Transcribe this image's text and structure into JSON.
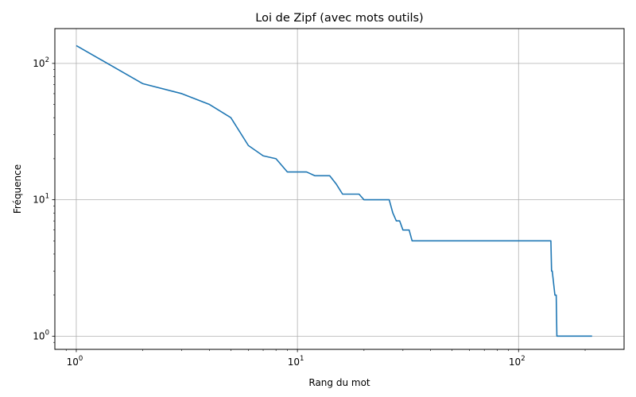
{
  "chart_data": {
    "type": "line",
    "title": "Loi de Zipf (avec mots outils)",
    "xlabel": "Rang du mot",
    "ylabel": "Fréquence",
    "x_scale": "log",
    "y_scale": "log",
    "xlim": [
      0.8,
      300
    ],
    "ylim": [
      0.8,
      180
    ],
    "grid": true,
    "color": "#1f77b4",
    "x_ticks": [
      {
        "value": 1,
        "base": "10",
        "exp": "0"
      },
      {
        "value": 10,
        "base": "10",
        "exp": "1"
      },
      {
        "value": 100,
        "base": "10",
        "exp": "2"
      }
    ],
    "y_ticks": [
      {
        "value": 1,
        "base": "10",
        "exp": "0"
      },
      {
        "value": 10,
        "base": "10",
        "exp": "1"
      },
      {
        "value": 100,
        "base": "10",
        "exp": "2"
      }
    ],
    "series": [
      {
        "x": [
          1,
          2,
          3,
          4,
          5,
          6,
          7,
          8,
          9,
          10,
          11,
          12,
          13,
          14,
          15,
          16,
          17,
          18,
          19,
          20,
          21,
          22,
          23,
          24,
          25,
          26,
          27,
          28,
          29,
          30,
          31,
          32,
          33,
          140,
          141,
          142,
          146,
          147,
          148,
          149,
          150,
          215
        ],
        "y": [
          135,
          71,
          60,
          50,
          40,
          25,
          21,
          20,
          16,
          16,
          16,
          15,
          15,
          15,
          13,
          11,
          11,
          11,
          11,
          10,
          10,
          10,
          10,
          10,
          10,
          10,
          8,
          7,
          7,
          6,
          6,
          6,
          5,
          5,
          3,
          3,
          2,
          2,
          2,
          1,
          1,
          1
        ]
      }
    ]
  }
}
